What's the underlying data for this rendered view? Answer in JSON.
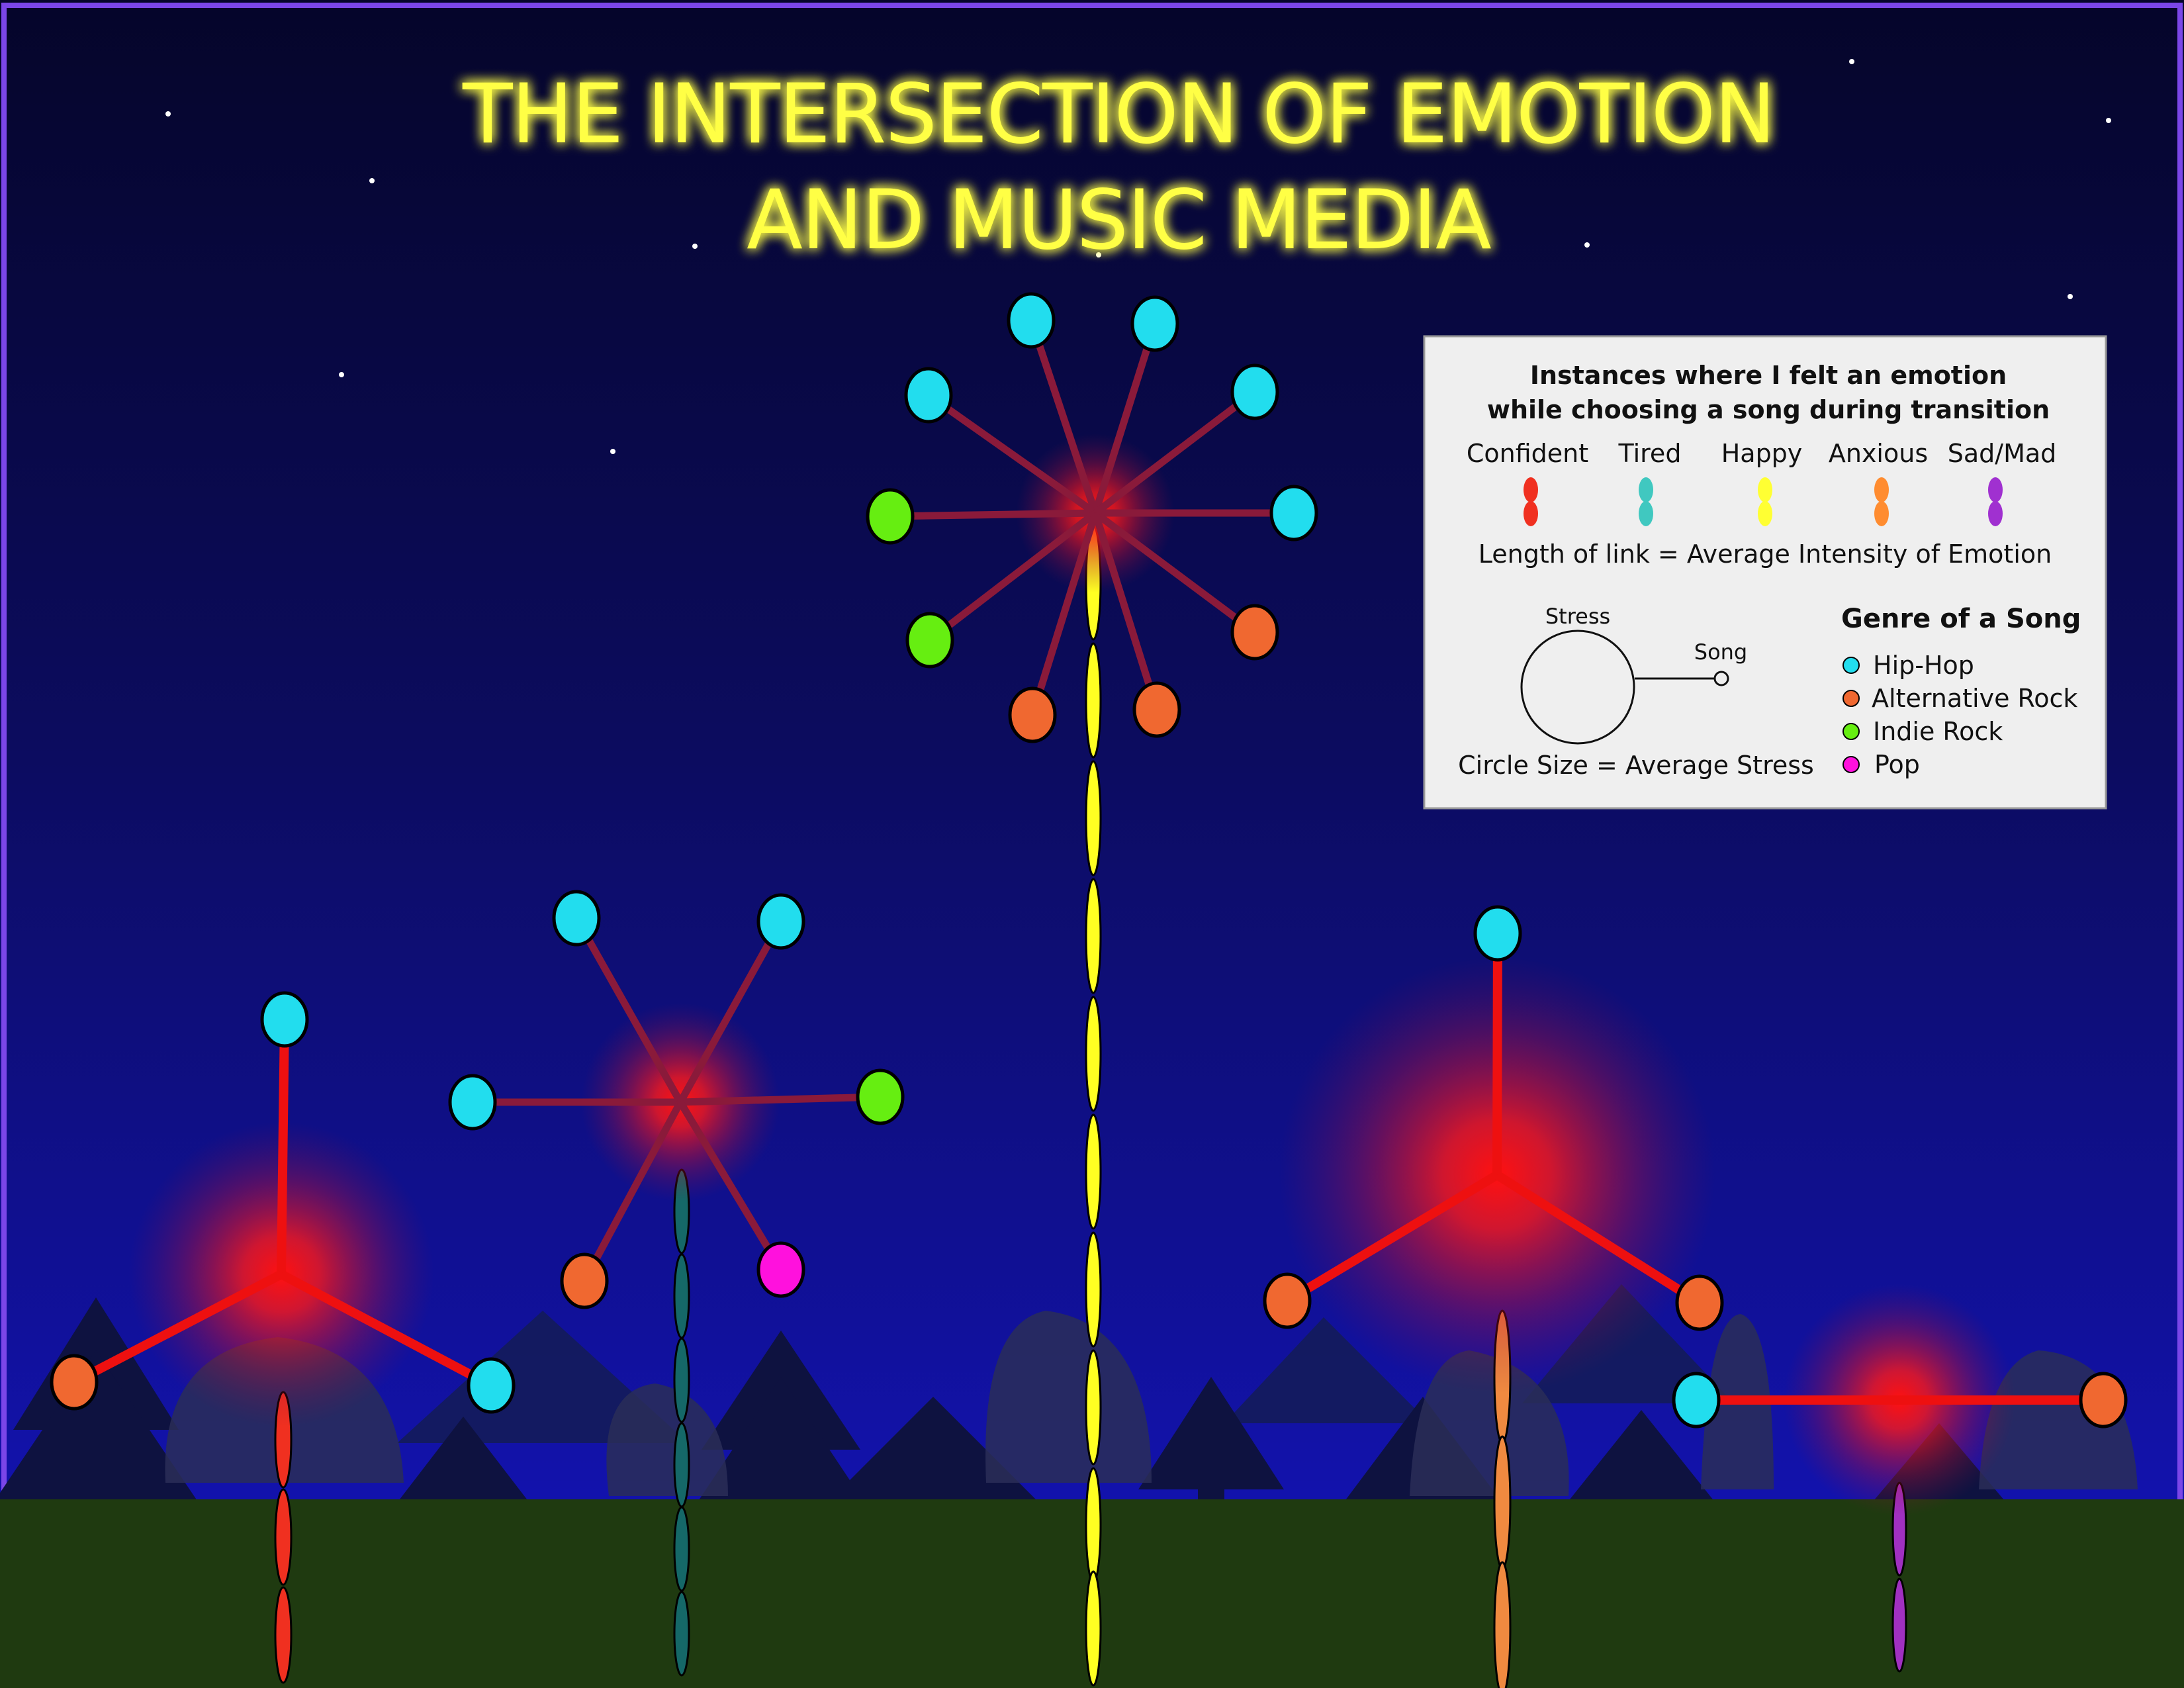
{
  "title": {
    "line1": "THE INTERSECTION OF EMOTION",
    "line2": "AND MUSIC MEDIA"
  },
  "colors": {
    "sky_top": "#05052a",
    "sky_bottom": "#1414b8",
    "ground": "#1f3a10",
    "title": "#ffff44",
    "link": "#8a1a3a",
    "link_strong": "#ff1010",
    "glow": "#ff1a1a",
    "frame": "#7b46e8"
  },
  "legend": {
    "heading1": "Instances where I felt an emotion",
    "heading2": "while choosing a song during transition",
    "emotions": [
      {
        "label": "Confident",
        "color": "#f03020"
      },
      {
        "label": "Tired",
        "color": "#40c8c0"
      },
      {
        "label": "Happy",
        "color": "#ffff33"
      },
      {
        "label": "Anxious",
        "color": "#ff8c30"
      },
      {
        "label": "Sad/Mad",
        "color": "#a030d0"
      }
    ],
    "link_note": "Length of link = Average Intensity of Emotion",
    "stress_label": "Stress",
    "song_label": "Song",
    "circle_note": "Circle Size = Average Stress",
    "genre_heading": "Genre of a Song",
    "genres": [
      {
        "label": "Hip-Hop",
        "color": "#22ddee"
      },
      {
        "label": "Alternative Rock",
        "color": "#f06830"
      },
      {
        "label": "Indie Rock",
        "color": "#66ee11"
      },
      {
        "label": "Pop",
        "color": "#ff11dd"
      }
    ]
  },
  "flowers": [
    {
      "name": "confident",
      "emotion_color": "#f03020",
      "stem_segments": 3,
      "stress_level": 0.75,
      "song_genres": [
        "Hip-Hop",
        "Alternative Rock",
        "Hip-Hop"
      ]
    },
    {
      "name": "tired",
      "emotion_color": "#1a6a6a",
      "stem_segments": 6,
      "stress_level": 0.45,
      "song_genres": [
        "Hip-Hop",
        "Hip-Hop",
        "Hip-Hop",
        "Indie Rock",
        "Pop",
        "Alternative Rock"
      ]
    },
    {
      "name": "happy",
      "emotion_color": "#ffff22",
      "stem_segments": 10,
      "stress_level": 0.3,
      "song_genres": [
        "Hip-Hop",
        "Hip-Hop",
        "Hip-Hop",
        "Hip-Hop",
        "Hip-Hop",
        "Alternative Rock",
        "Alternative Rock",
        "Alternative Rock",
        "Indie Rock",
        "Indie Rock"
      ]
    },
    {
      "name": "anxious",
      "emotion_color": "#f08a40",
      "stem_segments": 3,
      "stress_level": 1.0,
      "song_genres": [
        "Hip-Hop",
        "Alternative Rock",
        "Alternative Rock"
      ]
    },
    {
      "name": "sad-mad",
      "emotion_color": "#a030c0",
      "stem_segments": 2,
      "stress_level": 0.55,
      "song_genres": [
        "Hip-Hop",
        "Alternative Rock"
      ]
    }
  ]
}
